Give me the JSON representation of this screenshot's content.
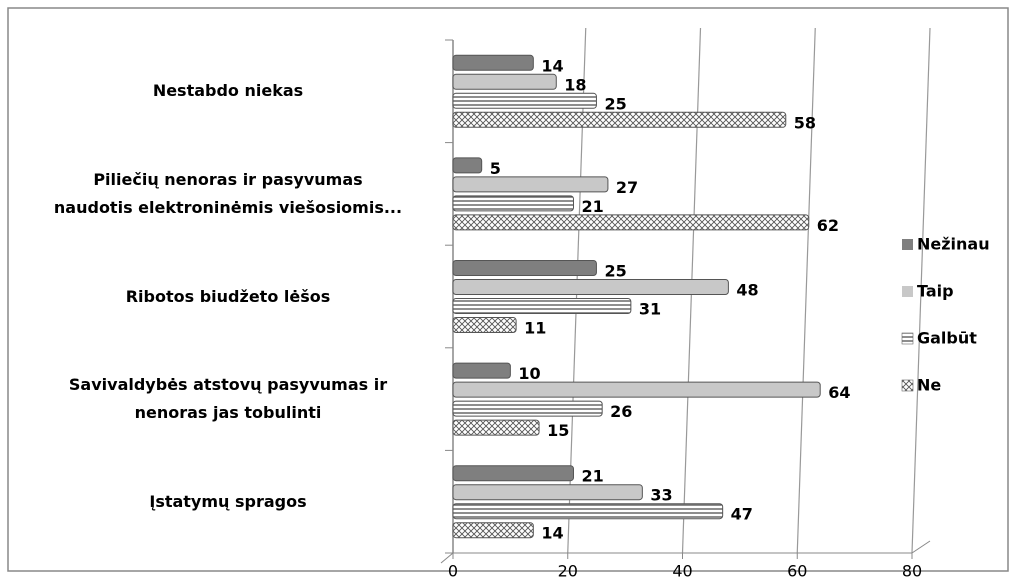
{
  "chart_data": {
    "type": "bar",
    "orientation": "horizontal",
    "categories": [
      "Nestabdo niekas",
      "Piliečių nenoras ir pasyvumas\nnaudotis elektroninėmis viešosiomis...",
      "Ribotos biudžeto lėšos",
      "Savivaldybės atstovų pasyvumas ir\nnenoras jas tobulinti",
      "Įstatymų spragos"
    ],
    "series": [
      {
        "name": "Nežinau",
        "color": "#7f7f7f",
        "hatch": "none",
        "values": [
          14,
          5,
          25,
          10,
          21
        ]
      },
      {
        "name": "Taip",
        "color": "#c8c8c8",
        "hatch": "none",
        "values": [
          18,
          27,
          48,
          64,
          33
        ]
      },
      {
        "name": "Galbūt",
        "color": "#ffffff",
        "hatch": "horizontal",
        "values": [
          25,
          21,
          31,
          26,
          47
        ]
      },
      {
        "name": "Ne",
        "color": "#ffffff",
        "hatch": "cross",
        "values": [
          58,
          62,
          11,
          15,
          14
        ]
      }
    ],
    "xlim": [
      0,
      80
    ],
    "xticks": [
      0,
      20,
      40,
      60,
      80
    ],
    "grid": true,
    "legend": "right"
  }
}
